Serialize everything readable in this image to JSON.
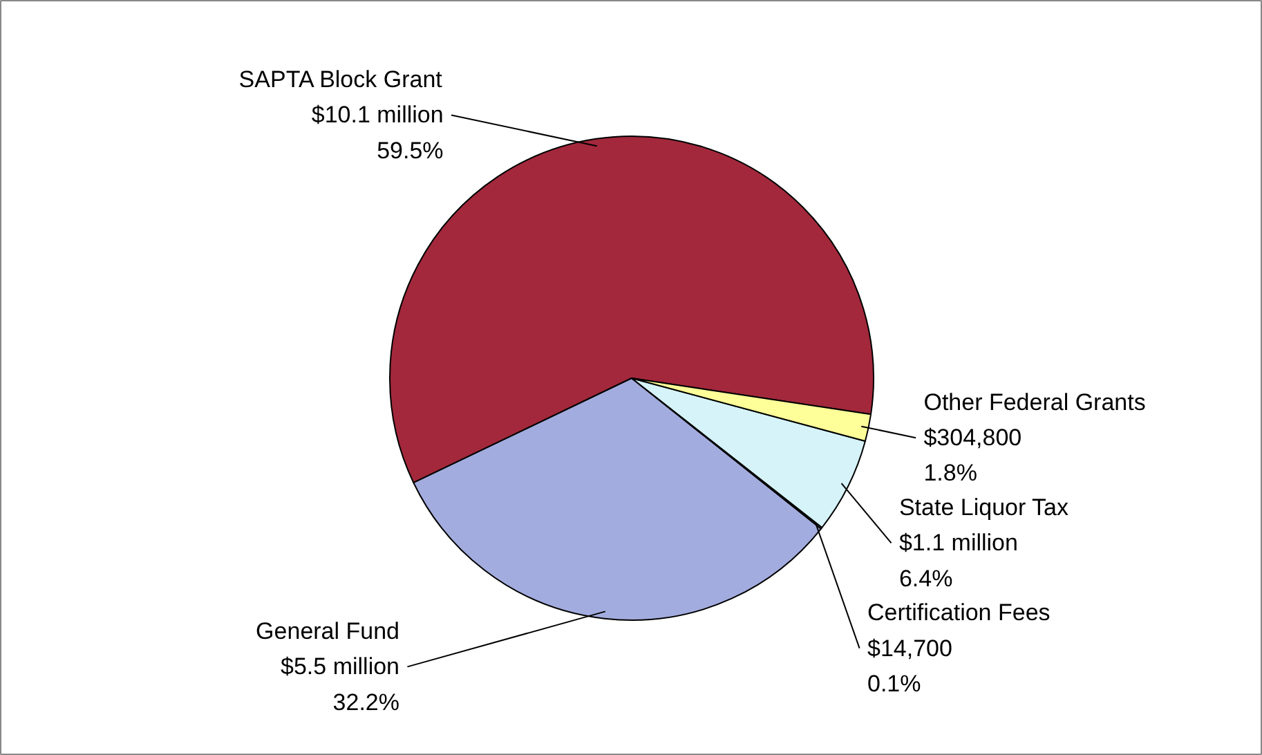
{
  "chart_data": {
    "type": "pie",
    "categories": [
      "SAPTA Block Grant",
      "General Fund",
      "Certification Fees",
      "State Liquor Tax",
      "Other Federal Grants"
    ],
    "values": [
      59.5,
      32.2,
      0.1,
      6.4,
      1.8
    ],
    "colors": [
      "#a3283c",
      "#a3acde",
      "#cfe8f5",
      "#d5f3f9",
      "#ffff99"
    ],
    "value_labels": [
      "$10.1 million\n59.5%",
      "$5.5 million\n32.2%",
      "$14,700\n0.1%",
      "$1.1 million\n6.4%",
      "$304,800\n1.8%"
    ]
  }
}
